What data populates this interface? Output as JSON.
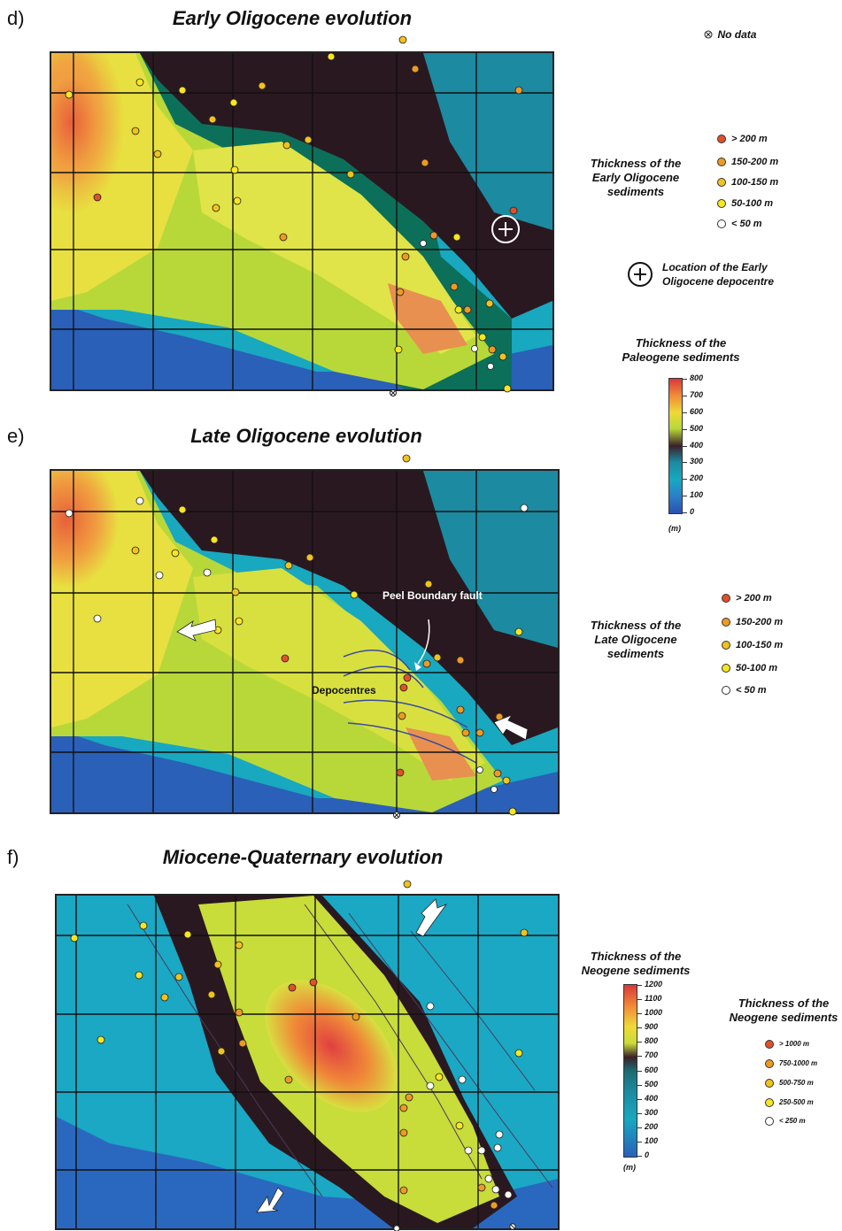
{
  "panels": [
    {
      "letter": "d)",
      "title": "Early Oligocene evolution"
    },
    {
      "letter": "e)",
      "title": "Late Oligocene evolution"
    },
    {
      "letter": "f)",
      "title": "Miocene-Quaternary evolution"
    }
  ],
  "legend_no_data": "No data",
  "early": {
    "thickness_label": "Thickness of the Early Oligocene sediments",
    "classes": [
      {
        "label": "> 200 m",
        "color": "#e0502a"
      },
      {
        "label": "150-200 m",
        "color": "#ee9a22"
      },
      {
        "label": "100-150 m",
        "color": "#f2c21c"
      },
      {
        "label": "50-100 m",
        "color": "#f7e620"
      },
      {
        "label": "< 50 m",
        "color": "#ffffff"
      }
    ],
    "depocentre_label": "Location of the Early Oligocene depocentre"
  },
  "paleogene_bar": {
    "label": "Thickness of the Paleogene sediments",
    "ticks": [
      "800",
      "700",
      "600",
      "500",
      "400",
      "300",
      "200",
      "100",
      "0"
    ],
    "unit": "(m)"
  },
  "late": {
    "thickness_label": "Thickness of the Late Oligocene sediments",
    "classes": [
      {
        "label": "> 200 m",
        "color": "#e0502a"
      },
      {
        "label": "150-200 m",
        "color": "#ee9a22"
      },
      {
        "label": "100-150 m",
        "color": "#f2c21c"
      },
      {
        "label": "50-100 m",
        "color": "#f7e620"
      },
      {
        "label": "< 50 m",
        "color": "#ffffff"
      }
    ],
    "annotation_fault": "Peel Boundary fault",
    "annotation_depocentres": "Depocentres"
  },
  "neogene_bar": {
    "label": "Thickness of the Neogene sediments",
    "ticks": [
      "1200",
      "1100",
      "1000",
      "900",
      "800",
      "700",
      "600",
      "500",
      "400",
      "300",
      "200",
      "100",
      "0"
    ],
    "unit": "(m)"
  },
  "neogene": {
    "thickness_label": "Thickness of the Neogene sediments",
    "classes": [
      {
        "label": "> 1000 m",
        "color": "#e0502a"
      },
      {
        "label": "750-1000 m",
        "color": "#ee9a22"
      },
      {
        "label": "500-750 m",
        "color": "#f2c21c"
      },
      {
        "label": "250-500 m",
        "color": "#f7e620"
      },
      {
        "label": "< 250 m",
        "color": "#ffffff"
      }
    ]
  }
}
